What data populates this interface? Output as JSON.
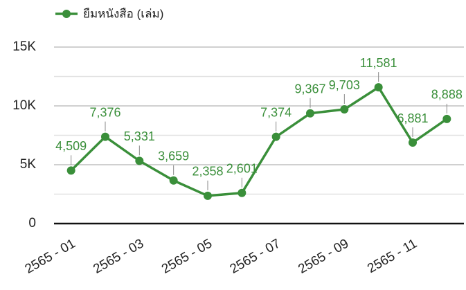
{
  "chart_data": {
    "type": "line",
    "legend": "ยืมหนังสือ (เล่ม)",
    "legend_position": "top-left",
    "categories": [
      "2565 - 01",
      null,
      "2565 - 03",
      null,
      "2565 - 05",
      null,
      "2565 - 07",
      null,
      "2565 - 09",
      null,
      "2565 - 11",
      null
    ],
    "values": [
      4509,
      7376,
      5331,
      3659,
      2358,
      2601,
      7374,
      9367,
      9703,
      11581,
      6881,
      8888
    ],
    "value_labels": [
      "4,509",
      "7,376",
      "5,331",
      "3,659",
      "2,358",
      "2,601",
      "7,374",
      "9,367",
      "9,703",
      "11,581",
      "6,881",
      "8,888"
    ],
    "color": "#3a8f3a",
    "ylim": [
      0,
      15000
    ],
    "yticks": [
      0,
      {
        "value": 5000,
        "label": "5K"
      },
      {
        "value": 10000,
        "label": "10K"
      },
      {
        "value": 15000,
        "label": "15K"
      }
    ],
    "minor_yticks": [
      2500,
      7500,
      12500
    ],
    "grid": true
  }
}
